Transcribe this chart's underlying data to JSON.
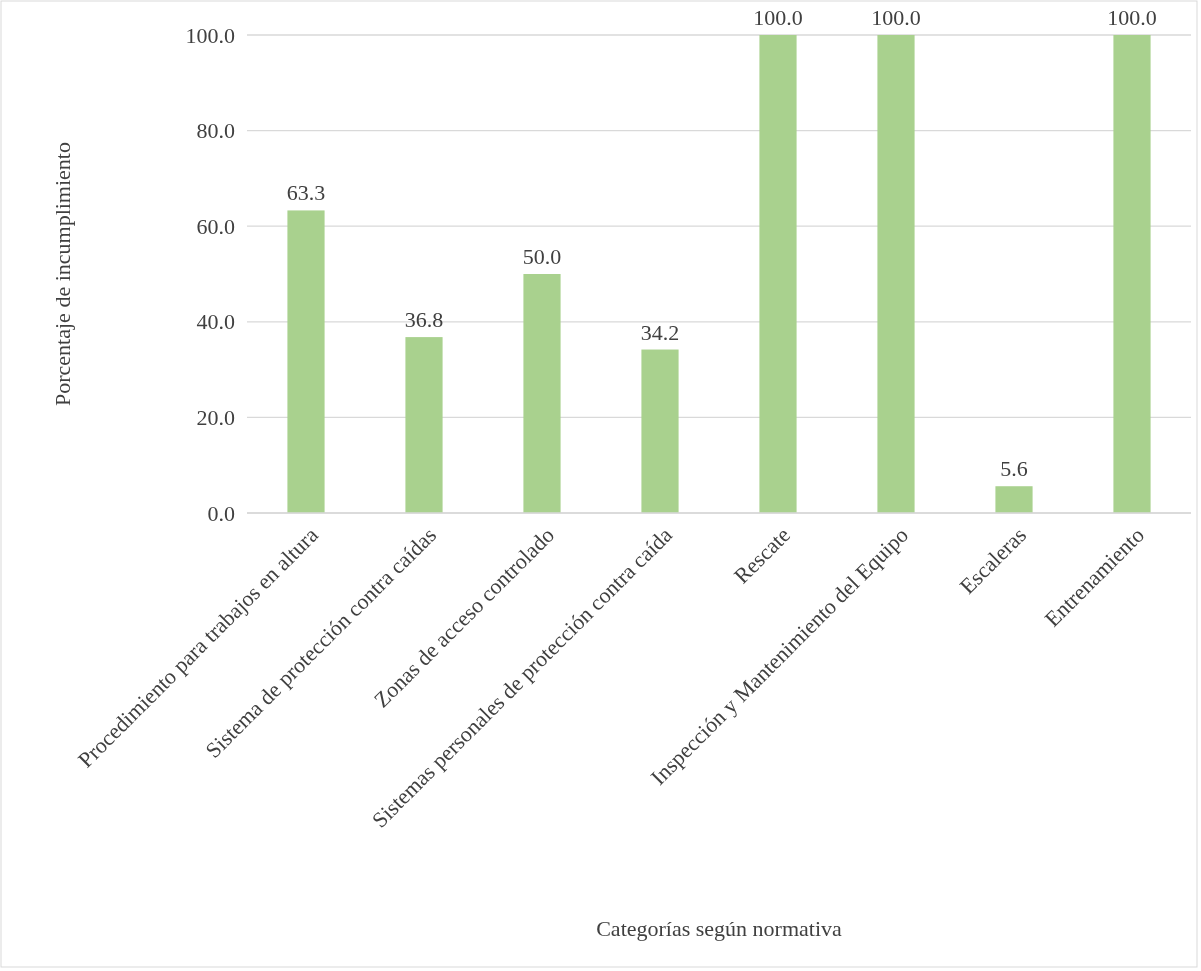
{
  "chart_data": {
    "type": "bar",
    "xlabel": "Categorías según normativa",
    "ylabel": "Porcentaje de incumplimiento",
    "categories": [
      "Procedimiento para trabajos en altura",
      "Sistema de protección contra caídas",
      "Zonas de acceso controlado",
      "Sistemas personales de protección contra caída",
      "Rescate",
      "Inspección y Mantenimiento del Equipo",
      "Escaleras",
      "Entrenamiento"
    ],
    "values": [
      63.3,
      36.8,
      50.0,
      34.2,
      100.0,
      100.0,
      5.6,
      100.0
    ],
    "value_labels": [
      "63.3",
      "36.8",
      "50.0",
      "34.2",
      "100.0",
      "100.0",
      "5.6",
      "100.0"
    ],
    "color": "#a9d18e",
    "ylim": [
      0,
      100
    ],
    "yticks": [
      {
        "value": 0,
        "label": "0.0"
      },
      {
        "value": 20,
        "label": "20.0"
      },
      {
        "value": 40,
        "label": "40.0"
      },
      {
        "value": 60,
        "label": "60.0"
      },
      {
        "value": 80,
        "label": "80.0"
      },
      {
        "value": 100,
        "label": "100.0"
      }
    ],
    "grid": "y"
  }
}
